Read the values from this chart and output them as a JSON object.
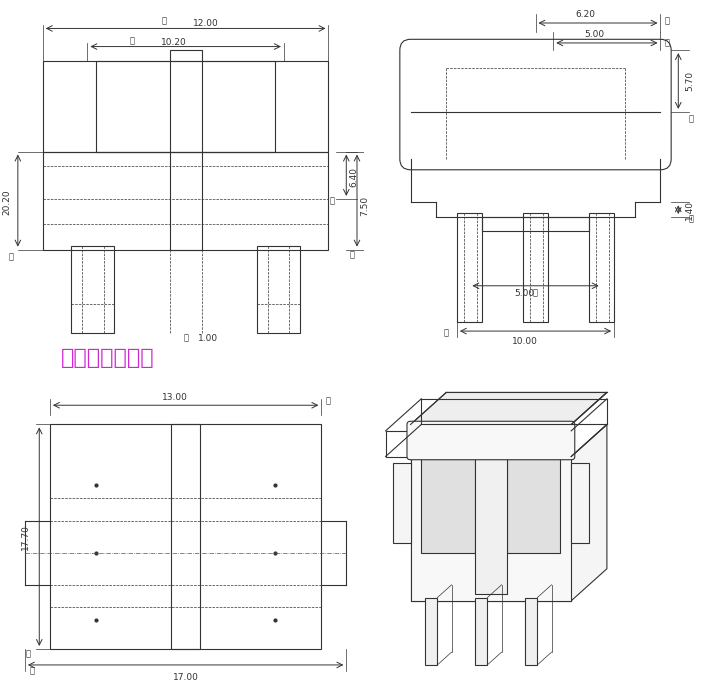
{
  "bg_color": "#ffffff",
  "line_color": "#333333",
  "dim_color": "#333333",
  "watermark_color": "#cc00cc",
  "watermark_text": "琴江洞电子商场",
  "dim_labels": {
    "A": "12.00",
    "B": "10.20",
    "C": "20.20",
    "D": "1.00",
    "E": "6.40",
    "F": "7.50",
    "G": "6.20",
    "H": "5.00",
    "I": "5.70",
    "J": "1.40",
    "K": "5.00",
    "L": "10.00",
    "M": "13.00",
    "N": "17.70",
    "O": "17.00"
  }
}
